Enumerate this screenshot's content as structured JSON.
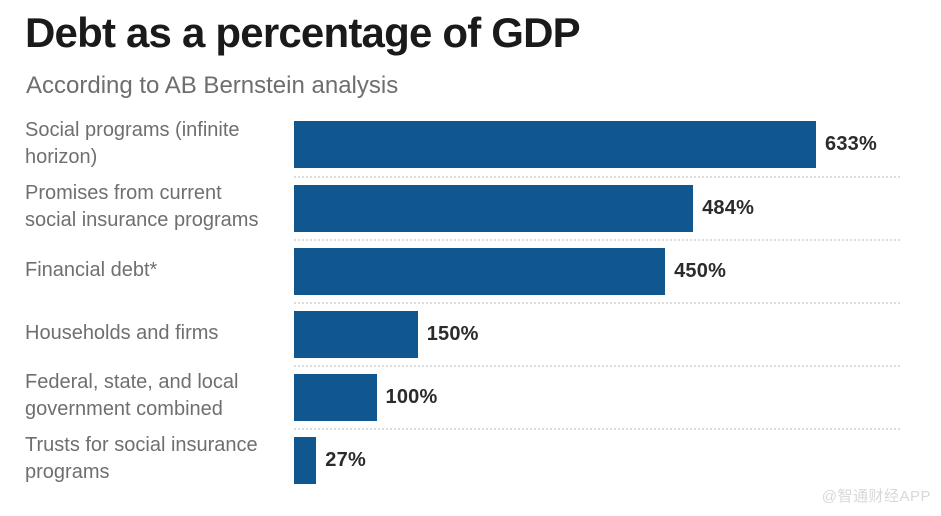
{
  "chart_data": {
    "type": "bar",
    "orientation": "horizontal",
    "title": "Debt as a percentage of GDP",
    "subtitle": "According to AB Bernstein analysis",
    "categories": [
      "Social programs (infinite horizon)",
      "Promises from current social insurance programs",
      "Financial debt*",
      "Households and firms",
      "Federal, state, and local government combined",
      "Trusts for social insurance programs"
    ],
    "category_display_lines": [
      [
        "Social programs (infinite",
        "horizon)"
      ],
      [
        "Promises from current",
        "social insurance programs"
      ],
      [
        "Financial debt*"
      ],
      [
        "Households and firms"
      ],
      [
        "Federal, state, and local",
        "government combined"
      ],
      [
        "Trusts for social insurance",
        "programs"
      ]
    ],
    "values": [
      633,
      484,
      450,
      150,
      100,
      27
    ],
    "value_labels": [
      "633%",
      "484%",
      "450%",
      "150%",
      "100%",
      "27%"
    ],
    "bar_color": "#11578F",
    "grid": false,
    "legend": false
  },
  "watermark": {
    "text": "@智通财经APP"
  },
  "colors": {
    "background": "#ffffff",
    "title": "#1a1a1a",
    "subtitle": "#6e6e6e",
    "category_label": "#6f6f6f",
    "value_label": "#2b2b2b",
    "bar": "#11578F",
    "separator": "#dcdcdc",
    "watermark": "#d8d8d8"
  }
}
